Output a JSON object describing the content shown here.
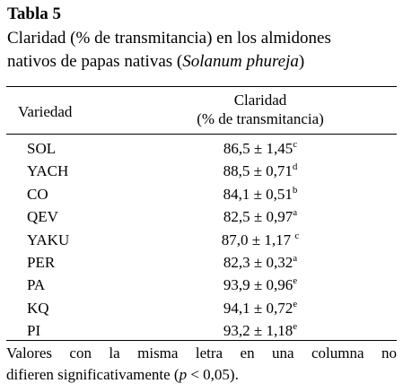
{
  "table": {
    "label": "Tabla 5",
    "caption_line1": "Claridad (% de transmitancia) en los almidones",
    "caption_line2_prefix": "nativos de papas nativas (",
    "caption_line2_italic": "Solanum phureja",
    "caption_line2_suffix": ")",
    "header_variety": "Variedad",
    "header_value_line1": "Claridad",
    "header_value_line2": "(% de transmitancia)",
    "rows": [
      {
        "variety": "SOL",
        "value": "86,5 ± 1,45",
        "letter": "c"
      },
      {
        "variety": "YACH",
        "value": "88,5 ± 0,71",
        "letter": "d"
      },
      {
        "variety": "CO",
        "value": "84,1 ± 0,51",
        "letter": "b"
      },
      {
        "variety": "QEV",
        "value": "82,5 ± 0,97",
        "letter": "a"
      },
      {
        "variety": "YAKU",
        "value": "87,0 ± 1,17 ",
        "letter": "c"
      },
      {
        "variety": "PER",
        "value": "82,3 ± 0,32",
        "letter": "a"
      },
      {
        "variety": "PA",
        "value": "93,9 ± 0,96",
        "letter": "e"
      },
      {
        "variety": "KQ",
        "value": "94,1 ± 0,72",
        "letter": "e"
      },
      {
        "variety": "PI",
        "value": "93,2 ± 1,18",
        "letter": "e"
      }
    ],
    "footnote_line1": "Valores con la misma letra en una columna no",
    "footnote_line2_prefix": "difieren significativamente (",
    "footnote_line2_italic": "p",
    "footnote_line2_suffix": " < 0,05)."
  }
}
